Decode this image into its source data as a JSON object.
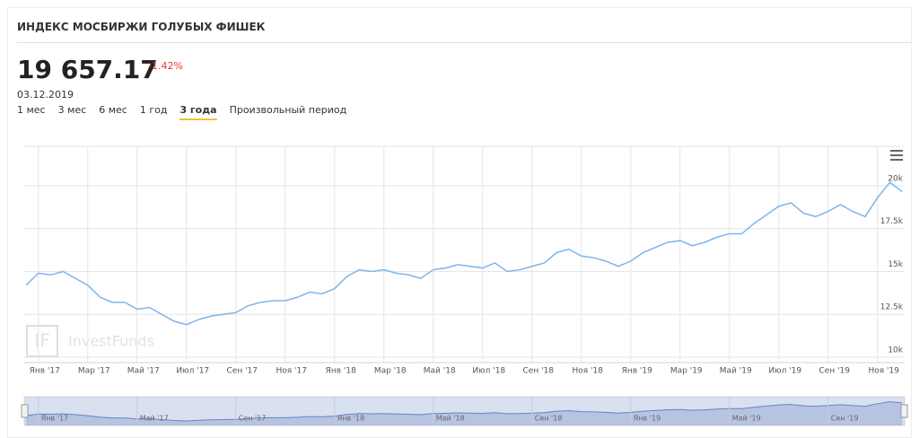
{
  "header": {
    "title": "ИНДЕКС МОСБИРЖИ ГОЛУБЫХ ФИШЕК",
    "price": "19 657.17",
    "change": "-1.42%",
    "date": "03.12.2019",
    "periods": [
      "1 мес",
      "3 мес",
      "6 мес",
      "1 год",
      "3 года",
      "Произвольный период"
    ],
    "selected_period": "3 года"
  },
  "watermark": {
    "logo": "IF",
    "text": "InvestFunds"
  },
  "chart_data": {
    "type": "line",
    "categories": [
      null,
      "Янв '17",
      null,
      null,
      null,
      "Мар '17",
      null,
      null,
      null,
      "Май '17",
      null,
      null,
      null,
      "Июл '17",
      null,
      null,
      null,
      "Сен '17",
      null,
      null,
      null,
      "Ноя '17",
      null,
      null,
      null,
      "Янв '18",
      null,
      null,
      null,
      "Мар '18",
      null,
      null,
      null,
      "Май '18",
      null,
      null,
      null,
      "Июл '18",
      null,
      null,
      null,
      "Сен '18",
      null,
      null,
      null,
      "Ноя '18",
      null,
      null,
      null,
      "Янв '19",
      null,
      null,
      null,
      "Мар '19",
      null,
      null,
      null,
      "Май '19",
      null,
      null,
      null,
      "Июл '19",
      null,
      null,
      null,
      "Сен '19",
      null,
      null,
      null,
      "Ноя '19",
      null,
      null
    ],
    "series": [
      {
        "name": "ИНДЕКС МОСБИРЖИ ГОЛУБЫХ ФИШЕК",
        "color": "#7cb5ec",
        "values": [
          14200,
          14900,
          14800,
          15000,
          14600,
          14200,
          13500,
          13200,
          13200,
          12800,
          12900,
          12500,
          12100,
          11900,
          12200,
          12400,
          12500,
          12600,
          13000,
          13200,
          13300,
          13300,
          13500,
          13800,
          13700,
          14000,
          14700,
          15100,
          15000,
          15100,
          14900,
          14800,
          14600,
          15100,
          15200,
          15400,
          15300,
          15200,
          15500,
          15000,
          15100,
          15300,
          15500,
          16100,
          16300,
          15900,
          15800,
          15600,
          15300,
          15600,
          16100,
          16400,
          16700,
          16800,
          16500,
          16700,
          17000,
          17200,
          17200,
          17800,
          18300,
          18800,
          19000,
          18400,
          18200,
          18500,
          18900,
          18500,
          18200,
          19300,
          20200,
          19657.17
        ]
      }
    ],
    "ylim": [
      10000,
      22300
    ],
    "yticks": [
      {
        "value": 10000,
        "label": "10k"
      },
      {
        "value": 12500,
        "label": "12.5k"
      },
      {
        "value": 15000,
        "label": "15k"
      },
      {
        "value": 17500,
        "label": "17.5k"
      },
      {
        "value": 20000,
        "label": "20k"
      }
    ],
    "grid": true
  }
}
